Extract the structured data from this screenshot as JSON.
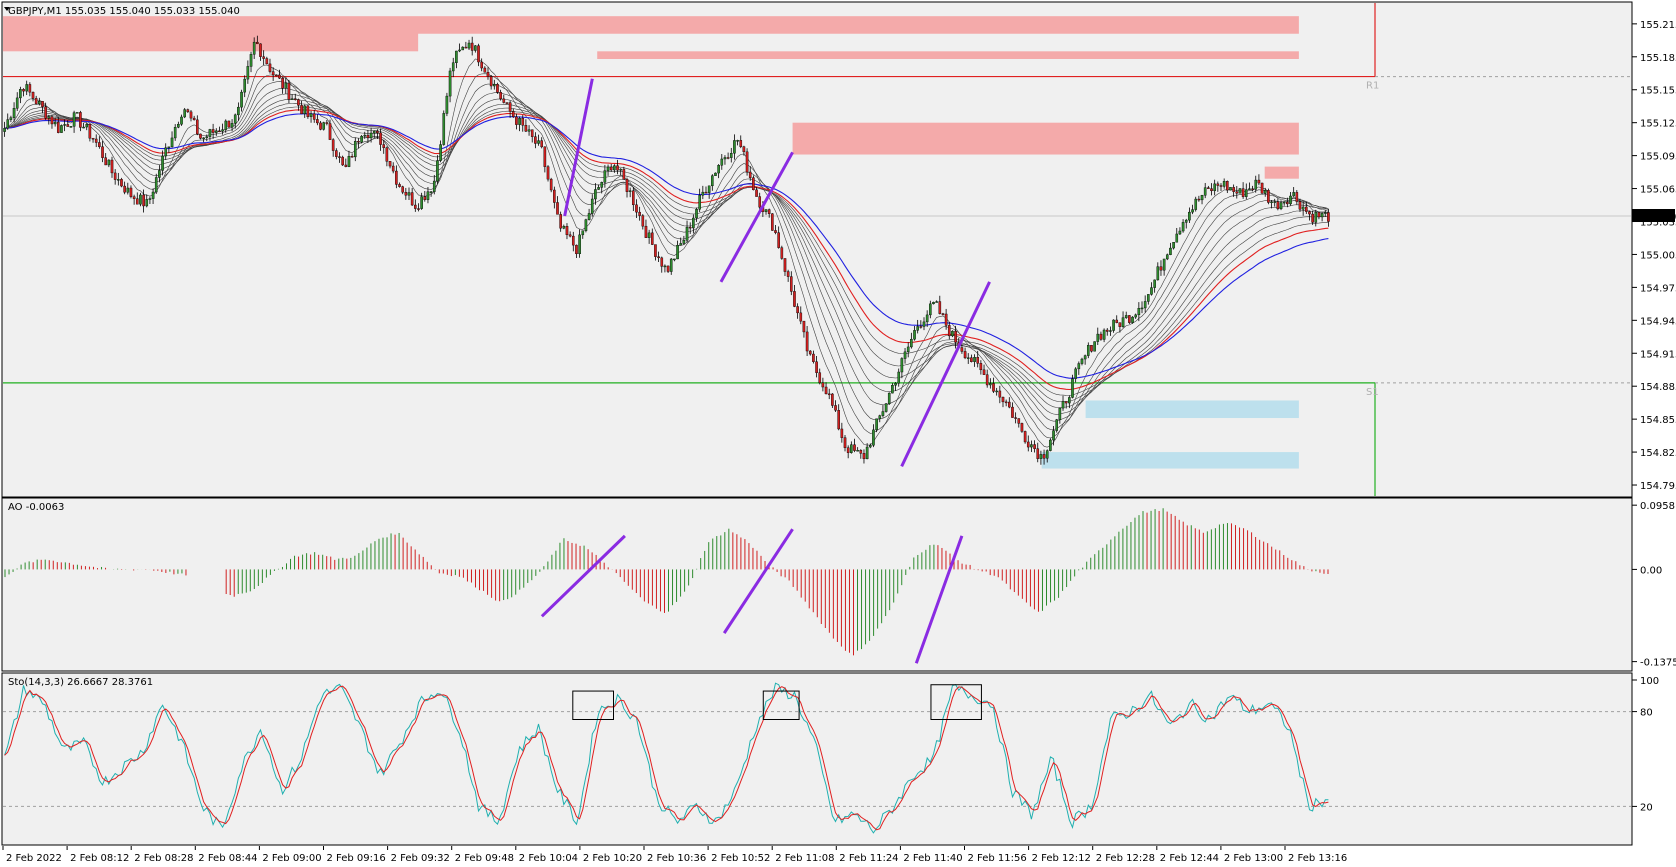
{
  "main": {
    "header": "GBPJPY,M1  155.035 155.040 155.033 155.040",
    "ylim": [
      154.785,
      155.234
    ],
    "yticks": [
      "155.215",
      "155.185",
      "155.155",
      "155.125",
      "155.095",
      "155.065",
      "155.035",
      "155.005",
      "154.975",
      "154.945",
      "154.915",
      "154.885",
      "154.855",
      "154.825",
      "154.795"
    ],
    "current_price": "155.040",
    "pivot_r1": {
      "label": "R1",
      "value": 155.167
    },
    "pivot_s1": {
      "label": "S1",
      "value": 154.888
    },
    "close_path": [
      155.12,
      155.16,
      155.14,
      155.12,
      155.13,
      155.11,
      155.08,
      155.06,
      155.05,
      155.1,
      155.14,
      155.11,
      155.12,
      155.13,
      155.2,
      155.17,
      155.15,
      155.13,
      155.12,
      155.08,
      155.12,
      155.11,
      155.07,
      155.05,
      155.07,
      155.18,
      155.2,
      155.17,
      155.14,
      155.12,
      155.1,
      155.03,
      155.01,
      155.06,
      155.09,
      155.06,
      155.02,
      154.99,
      155.02,
      155.06,
      155.09,
      155.11,
      155.06,
      155.03,
      154.97,
      154.91,
      154.88,
      154.83,
      154.82,
      154.86,
      154.9,
      154.94,
      154.96,
      154.93,
      154.91,
      154.89,
      154.87,
      154.84,
      154.82,
      154.86,
      154.9,
      154.93,
      154.94,
      154.95,
      154.97,
      155.01,
      155.04,
      155.06,
      155.07,
      155.06,
      155.07,
      155.05,
      155.06,
      155.04,
      155.04
    ],
    "close_bounds": {
      "hi": 155.205,
      "lo": 154.81
    },
    "zones": [
      {
        "color": "#f4aaaa",
        "top": 155.222,
        "bottom": 155.206,
        "from": 0.0,
        "to": 0.796
      },
      {
        "color": "#f4aaaa",
        "top": 155.208,
        "bottom": 155.19,
        "from": 0.0,
        "to": 0.255
      },
      {
        "color": "#f4aaaa",
        "top": 155.19,
        "bottom": 155.183,
        "from": 0.365,
        "to": 0.796
      },
      {
        "color": "#f4aaaa",
        "top": 155.125,
        "bottom": 155.096,
        "from": 0.485,
        "to": 0.796
      },
      {
        "color": "#f4aaaa",
        "top": 155.085,
        "bottom": 155.074,
        "from": 0.775,
        "to": 0.796
      },
      {
        "color": "#bde0ed",
        "top": 154.872,
        "bottom": 154.856,
        "from": 0.665,
        "to": 0.796
      },
      {
        "color": "#bde0ed",
        "top": 154.825,
        "bottom": 154.81,
        "from": 0.638,
        "to": 0.796
      }
    ],
    "trendlines": [
      {
        "x1": 0.345,
        "y1": 155.04,
        "x2": 0.362,
        "y2": 155.165
      },
      {
        "x1": 0.441,
        "y1": 154.98,
        "x2": 0.485,
        "y2": 155.098
      },
      {
        "x1": 0.552,
        "y1": 154.812,
        "x2": 0.606,
        "y2": 154.98
      }
    ]
  },
  "ao": {
    "header": "AO -0.0063",
    "ylim": [
      -0.15,
      0.105
    ],
    "yticks": [
      "0.0958",
      "0.00",
      "-0.1375"
    ],
    "path": [
      -0.01,
      0.01,
      0.015,
      0.01,
      0.005,
      0.0,
      0.0,
      0.0,
      -0.005,
      -0.01,
      -0.025,
      -0.04,
      -0.03,
      -0.005,
      0.02,
      0.025,
      0.015,
      0.02,
      0.045,
      0.055,
      0.025,
      -0.005,
      -0.01,
      -0.03,
      -0.05,
      -0.03,
      0.0,
      0.045,
      0.035,
      0.01,
      -0.02,
      -0.05,
      -0.065,
      -0.03,
      0.04,
      0.06,
      0.04,
      0.005,
      -0.02,
      -0.06,
      -0.1,
      -0.13,
      -0.1,
      -0.05,
      0.02,
      0.04,
      0.015,
      0.0,
      -0.01,
      -0.04,
      -0.065,
      -0.04,
      0.0,
      0.03,
      0.06,
      0.085,
      0.09,
      0.07,
      0.055,
      0.07,
      0.06,
      0.04,
      0.02,
      0.0,
      -0.006
    ],
    "trendlines": [
      {
        "x1": 0.331,
        "y1": -0.07,
        "x2": 0.382,
        "y2": 0.05
      },
      {
        "x1": 0.443,
        "y1": -0.095,
        "x2": 0.485,
        "y2": 0.06
      },
      {
        "x1": 0.561,
        "y1": -0.14,
        "x2": 0.589,
        "y2": 0.05
      }
    ]
  },
  "sto": {
    "header": "Sto(14,3,3) 26.6667 28.3761",
    "ylim": [
      0,
      100
    ],
    "yticks": [
      "100",
      "80",
      "20"
    ],
    "main_path": [
      50,
      95,
      85,
      55,
      60,
      35,
      45,
      55,
      85,
      60,
      20,
      5,
      45,
      70,
      30,
      50,
      90,
      95,
      70,
      40,
      60,
      85,
      95,
      70,
      20,
      10,
      55,
      70,
      30,
      10,
      80,
      88,
      75,
      25,
      10,
      20,
      10,
      30,
      70,
      95,
      90,
      60,
      10,
      15,
      5,
      20,
      40,
      50,
      95,
      90,
      85,
      30,
      15,
      50,
      10,
      20,
      75,
      80,
      90,
      70,
      85,
      75,
      90,
      80,
      85,
      70,
      20,
      25
    ],
    "boxes": [
      {
        "x1": 0.35,
        "x2": 0.375,
        "top": 93,
        "bottom": 75
      },
      {
        "x1": 0.467,
        "x2": 0.489,
        "top": 93,
        "bottom": 75
      },
      {
        "x1": 0.57,
        "x2": 0.601,
        "top": 97,
        "bottom": 75
      }
    ]
  },
  "time_labels": [
    "2 Feb 2022",
    "2 Feb 08:12",
    "2 Feb 08:28",
    "2 Feb 08:44",
    "2 Feb 09:00",
    "2 Feb 09:16",
    "2 Feb 09:32",
    "2 Feb 09:48",
    "2 Feb 10:04",
    "2 Feb 10:20",
    "2 Feb 10:36",
    "2 Feb 10:52",
    "2 Feb 11:08",
    "2 Feb 11:24",
    "2 Feb 11:40",
    "2 Feb 11:56",
    "2 Feb 12:12",
    "2 Feb 12:28",
    "2 Feb 12:44",
    "2 Feb 13:00",
    "2 Feb 13:16"
  ],
  "colors": {
    "background": "#f0f0f0",
    "bull": "#2e8b2e",
    "bear": "#d02020",
    "ema_slow": "#2020e0",
    "ema_mid": "#e02020",
    "ema_ribbon": "#404040",
    "sto_main": "#20b0b0",
    "sto_signal": "#e02020",
    "trendline": "#8a2be2",
    "r1_line": "#e02020",
    "s1_line": "#20b020"
  }
}
